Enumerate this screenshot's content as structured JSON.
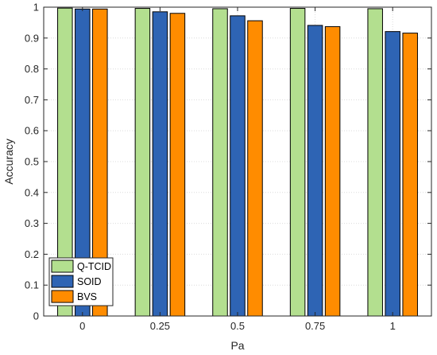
{
  "chart_data": {
    "type": "bar",
    "categories": [
      "0",
      "0.25",
      "0.5",
      "0.75",
      "1"
    ],
    "series": [
      {
        "name": "Q-TCID",
        "color": "#b3df8f",
        "values": [
          0.997,
          0.996,
          0.995,
          0.996,
          0.995
        ]
      },
      {
        "name": "SOID",
        "color": "#2e64b4",
        "values": [
          0.994,
          0.985,
          0.972,
          0.941,
          0.921
        ]
      },
      {
        "name": "BVS",
        "color": "#ff8c00",
        "values": [
          0.994,
          0.98,
          0.956,
          0.937,
          0.916
        ]
      }
    ],
    "xlabel": "Pa",
    "ylabel": "Accuracy",
    "ylim": [
      0,
      1
    ],
    "yticks": [
      "0",
      "0.1",
      "0.2",
      "0.3",
      "0.4",
      "0.5",
      "0.6",
      "0.7",
      "0.8",
      "0.9",
      "1"
    ],
    "grid": true,
    "legend_position": "bottom-left"
  }
}
